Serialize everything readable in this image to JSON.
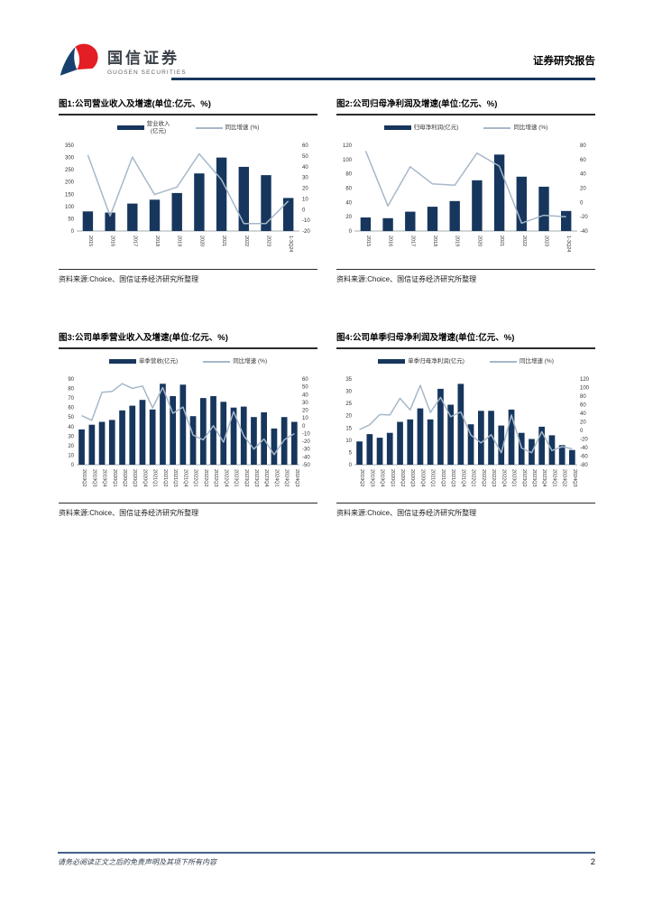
{
  "header": {
    "brand_cn": "国信证券",
    "brand_en": "GUOSEN SECURITIES",
    "report_type": "证券研究报告",
    "brand_blue": "#17406e",
    "brand_red": "#e31e24"
  },
  "source_note": "资料来源:Choice、国信证券经济研究所整理",
  "footer": {
    "disclaimer": "请务必阅读正文之后的免责声明及其项下所有内容",
    "page_number": "2"
  },
  "chart_data": [
    {
      "type": "bar+line",
      "title": "图1:公司营业收入及增速(单位:亿元、%)",
      "categories": [
        "2015",
        "2016",
        "2017",
        "2018",
        "2019",
        "2020",
        "2021",
        "2022",
        "2023",
        "1-3Q24"
      ],
      "left_axis": {
        "min": 0,
        "max": 350,
        "ticks": [
          0,
          50,
          100,
          150,
          200,
          250,
          300,
          350
        ]
      },
      "right_axis": {
        "min": -20,
        "max": 60,
        "ticks": [
          -20,
          -10,
          0,
          10,
          20,
          30,
          40,
          50,
          60
        ]
      },
      "legend_position": "top",
      "grid": false,
      "series": [
        {
          "name": "营业收入\n(亿元)",
          "type": "bar",
          "axis": "left",
          "color": "#17365d",
          "values": [
            80,
            75,
            112,
            128,
            155,
            235,
            300,
            262,
            228,
            135
          ]
        },
        {
          "name": "同比增速 (%)",
          "type": "line",
          "axis": "right",
          "color": "#a6b8c9",
          "values": [
            51,
            -6,
            49,
            14,
            21,
            52,
            28,
            -13,
            -13,
            8
          ]
        }
      ]
    },
    {
      "type": "bar+line",
      "title": "图2:公司归母净利润及增速(单位:亿元、%)",
      "categories": [
        "2015",
        "2016",
        "2017",
        "2018",
        "2019",
        "2020",
        "2021",
        "2022",
        "2023",
        "1-3Q24"
      ],
      "left_axis": {
        "min": 0,
        "max": 120,
        "ticks": [
          0,
          20,
          40,
          60,
          80,
          100,
          120
        ]
      },
      "right_axis": {
        "min": -40,
        "max": 80,
        "ticks": [
          -40,
          -20,
          0,
          20,
          40,
          60,
          80
        ]
      },
      "legend_position": "top",
      "grid": false,
      "series": [
        {
          "name": "归母净利润(亿元)",
          "type": "bar",
          "axis": "left",
          "color": "#17365d",
          "values": [
            19,
            18,
            27,
            34,
            42,
            71,
            107,
            76,
            62,
            28
          ]
        },
        {
          "name": "同比增速 (%)",
          "type": "line",
          "axis": "right",
          "color": "#a6b8c9",
          "values": [
            72,
            -5,
            50,
            26,
            24,
            69,
            51,
            -29,
            -18,
            -20
          ]
        }
      ]
    },
    {
      "type": "bar+line",
      "title": "图3:公司单季营业收入及增速(单位:亿元、%)",
      "categories": [
        "2019Q2",
        "2019Q3",
        "2019Q4",
        "2020Q1",
        "2020Q2",
        "2020Q3",
        "2020Q4",
        "2021Q1",
        "2021Q2",
        "2021Q3",
        "2021Q4",
        "2022Q1",
        "2022Q2",
        "2022Q3",
        "2022Q4",
        "2023Q1",
        "2023Q2",
        "2023Q3",
        "2023Q4",
        "2024Q1",
        "2024Q2",
        "2024Q3"
      ],
      "left_axis": {
        "min": 0,
        "max": 90,
        "ticks": [
          0,
          10,
          20,
          30,
          40,
          50,
          60,
          70,
          80,
          90
        ]
      },
      "right_axis": {
        "min": -50,
        "max": 60,
        "ticks": [
          -50,
          -40,
          -30,
          -20,
          -10,
          0,
          10,
          20,
          30,
          40,
          50,
          60
        ]
      },
      "legend_position": "top",
      "grid": false,
      "series": [
        {
          "name": "单季营收(亿元)",
          "type": "bar",
          "axis": "left",
          "color": "#17365d",
          "values": [
            37,
            42,
            45,
            47,
            57,
            62,
            68,
            58,
            85,
            72,
            84,
            51,
            70,
            72,
            66,
            60,
            61,
            50,
            55,
            38,
            50,
            45
          ]
        },
        {
          "name": "同比增速 (%)",
          "type": "line",
          "axis": "right",
          "color": "#a6b8c9",
          "values": [
            13,
            7,
            43,
            44,
            54,
            48,
            51,
            23,
            49,
            16,
            24,
            -12,
            -18,
            0,
            -21,
            18,
            -13,
            -30,
            -17,
            -37,
            -18,
            -10
          ]
        }
      ]
    },
    {
      "type": "bar+line",
      "title": "图4:公司单季归母净利润及增速(单位:亿元、%)",
      "categories": [
        "2019Q2",
        "2019Q3",
        "2019Q4",
        "2020Q1",
        "2020Q2",
        "2020Q3",
        "2020Q4",
        "2021Q1",
        "2021Q2",
        "2021Q3",
        "2021Q4",
        "2022Q1",
        "2022Q2",
        "2022Q3",
        "2022Q4",
        "2023Q1",
        "2023Q2",
        "2023Q3",
        "2023Q4",
        "2024Q1",
        "2024Q2",
        "2024Q3"
      ],
      "left_axis": {
        "min": 0,
        "max": 35,
        "ticks": [
          0,
          5,
          10,
          15,
          20,
          25,
          30,
          35
        ]
      },
      "right_axis": {
        "min": -80,
        "max": 120,
        "ticks": [
          -80,
          -60,
          -40,
          -20,
          0,
          20,
          40,
          60,
          80,
          100,
          120
        ]
      },
      "legend_position": "top",
      "grid": false,
      "series": [
        {
          "name": "单季归母净利润(亿元)",
          "type": "bar",
          "axis": "left",
          "color": "#17365d",
          "values": [
            9.5,
            12.5,
            11,
            13,
            17.5,
            18.5,
            23,
            18.5,
            31,
            24.5,
            33,
            16.5,
            22,
            22,
            16,
            22.5,
            13,
            10.5,
            15.5,
            12,
            8,
            6
          ]
        },
        {
          "name": "同比增速 (%)",
          "type": "line",
          "axis": "right",
          "color": "#a6b8c9",
          "values": [
            2,
            13,
            37,
            36,
            75,
            48,
            105,
            42,
            77,
            32,
            43,
            -11,
            -29,
            -10,
            -52,
            36,
            -41,
            -52,
            -3,
            -47,
            -38,
            -43
          ]
        }
      ]
    }
  ]
}
